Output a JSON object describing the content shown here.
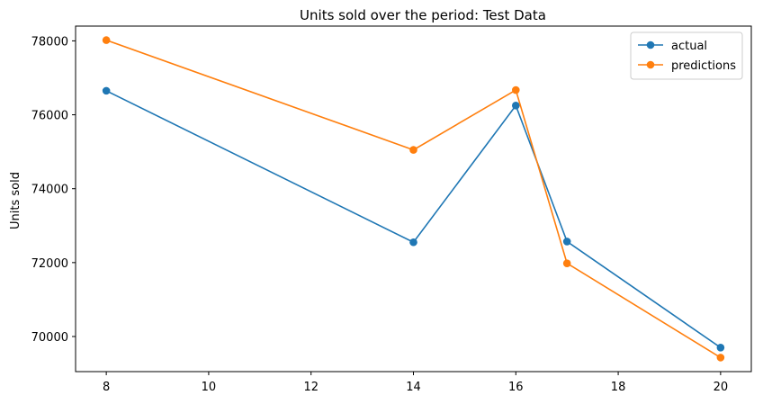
{
  "chart_data": {
    "type": "line",
    "title": "Units sold over the period: Test Data",
    "xlabel": "",
    "ylabel": "Units sold",
    "x": [
      8,
      14,
      16,
      17,
      20
    ],
    "xlim": [
      7.4,
      20.6
    ],
    "ylim": [
      69050,
      78400
    ],
    "xticks": [
      8,
      10,
      12,
      14,
      16,
      18,
      20
    ],
    "yticks": [
      70000,
      72000,
      74000,
      76000,
      78000
    ],
    "grid": false,
    "legend_position": "top-right",
    "series": [
      {
        "name": "actual",
        "color": "#1f77b4",
        "values": [
          76650,
          72550,
          76250,
          72570,
          69700
        ]
      },
      {
        "name": "predictions",
        "color": "#ff7f0e",
        "values": [
          78020,
          75050,
          76670,
          71980,
          69430
        ]
      }
    ]
  }
}
